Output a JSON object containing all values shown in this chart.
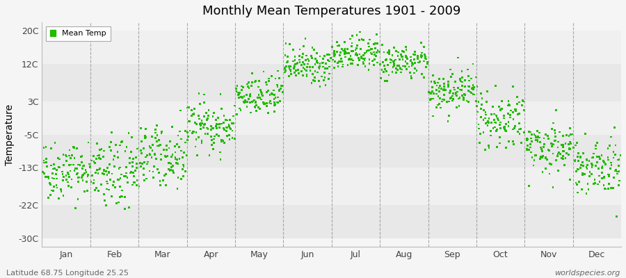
{
  "title": "Monthly Mean Temperatures 1901 - 2009",
  "ylabel": "Temperature",
  "yticks": [
    -30,
    -22,
    -13,
    -5,
    3,
    12,
    20
  ],
  "ytick_labels": [
    "-30C",
    "-22C",
    "-13C",
    "-5C",
    "3C",
    "12C",
    "20C"
  ],
  "ylim": [
    -32,
    22
  ],
  "months": [
    "Jan",
    "Feb",
    "Mar",
    "Apr",
    "May",
    "Jun",
    "Jul",
    "Aug",
    "Sep",
    "Oct",
    "Nov",
    "Dec"
  ],
  "mean_temps": [
    -13.5,
    -14.5,
    -10.0,
    -3.0,
    4.0,
    11.5,
    14.5,
    12.5,
    5.5,
    -1.5,
    -8.0,
    -12.5
  ],
  "std_temps": [
    3.5,
    4.2,
    3.5,
    3.0,
    2.5,
    2.2,
    2.0,
    2.0,
    2.5,
    3.0,
    3.2,
    3.5
  ],
  "n_years": 109,
  "dot_color": "#22bb00",
  "dot_size": 4,
  "bg_color": "#f5f5f5",
  "band_colors": [
    "#ebebeb",
    "#f5f5f5"
  ],
  "legend_label": "Mean Temp",
  "subtitle_left": "Latitude 68.75 Longitude 25.25",
  "subtitle_right": "worldspecies.org",
  "vline_color": "#888888",
  "hband_colors": [
    "#e8e8e8",
    "#f0f0f0"
  ],
  "seed": 42
}
